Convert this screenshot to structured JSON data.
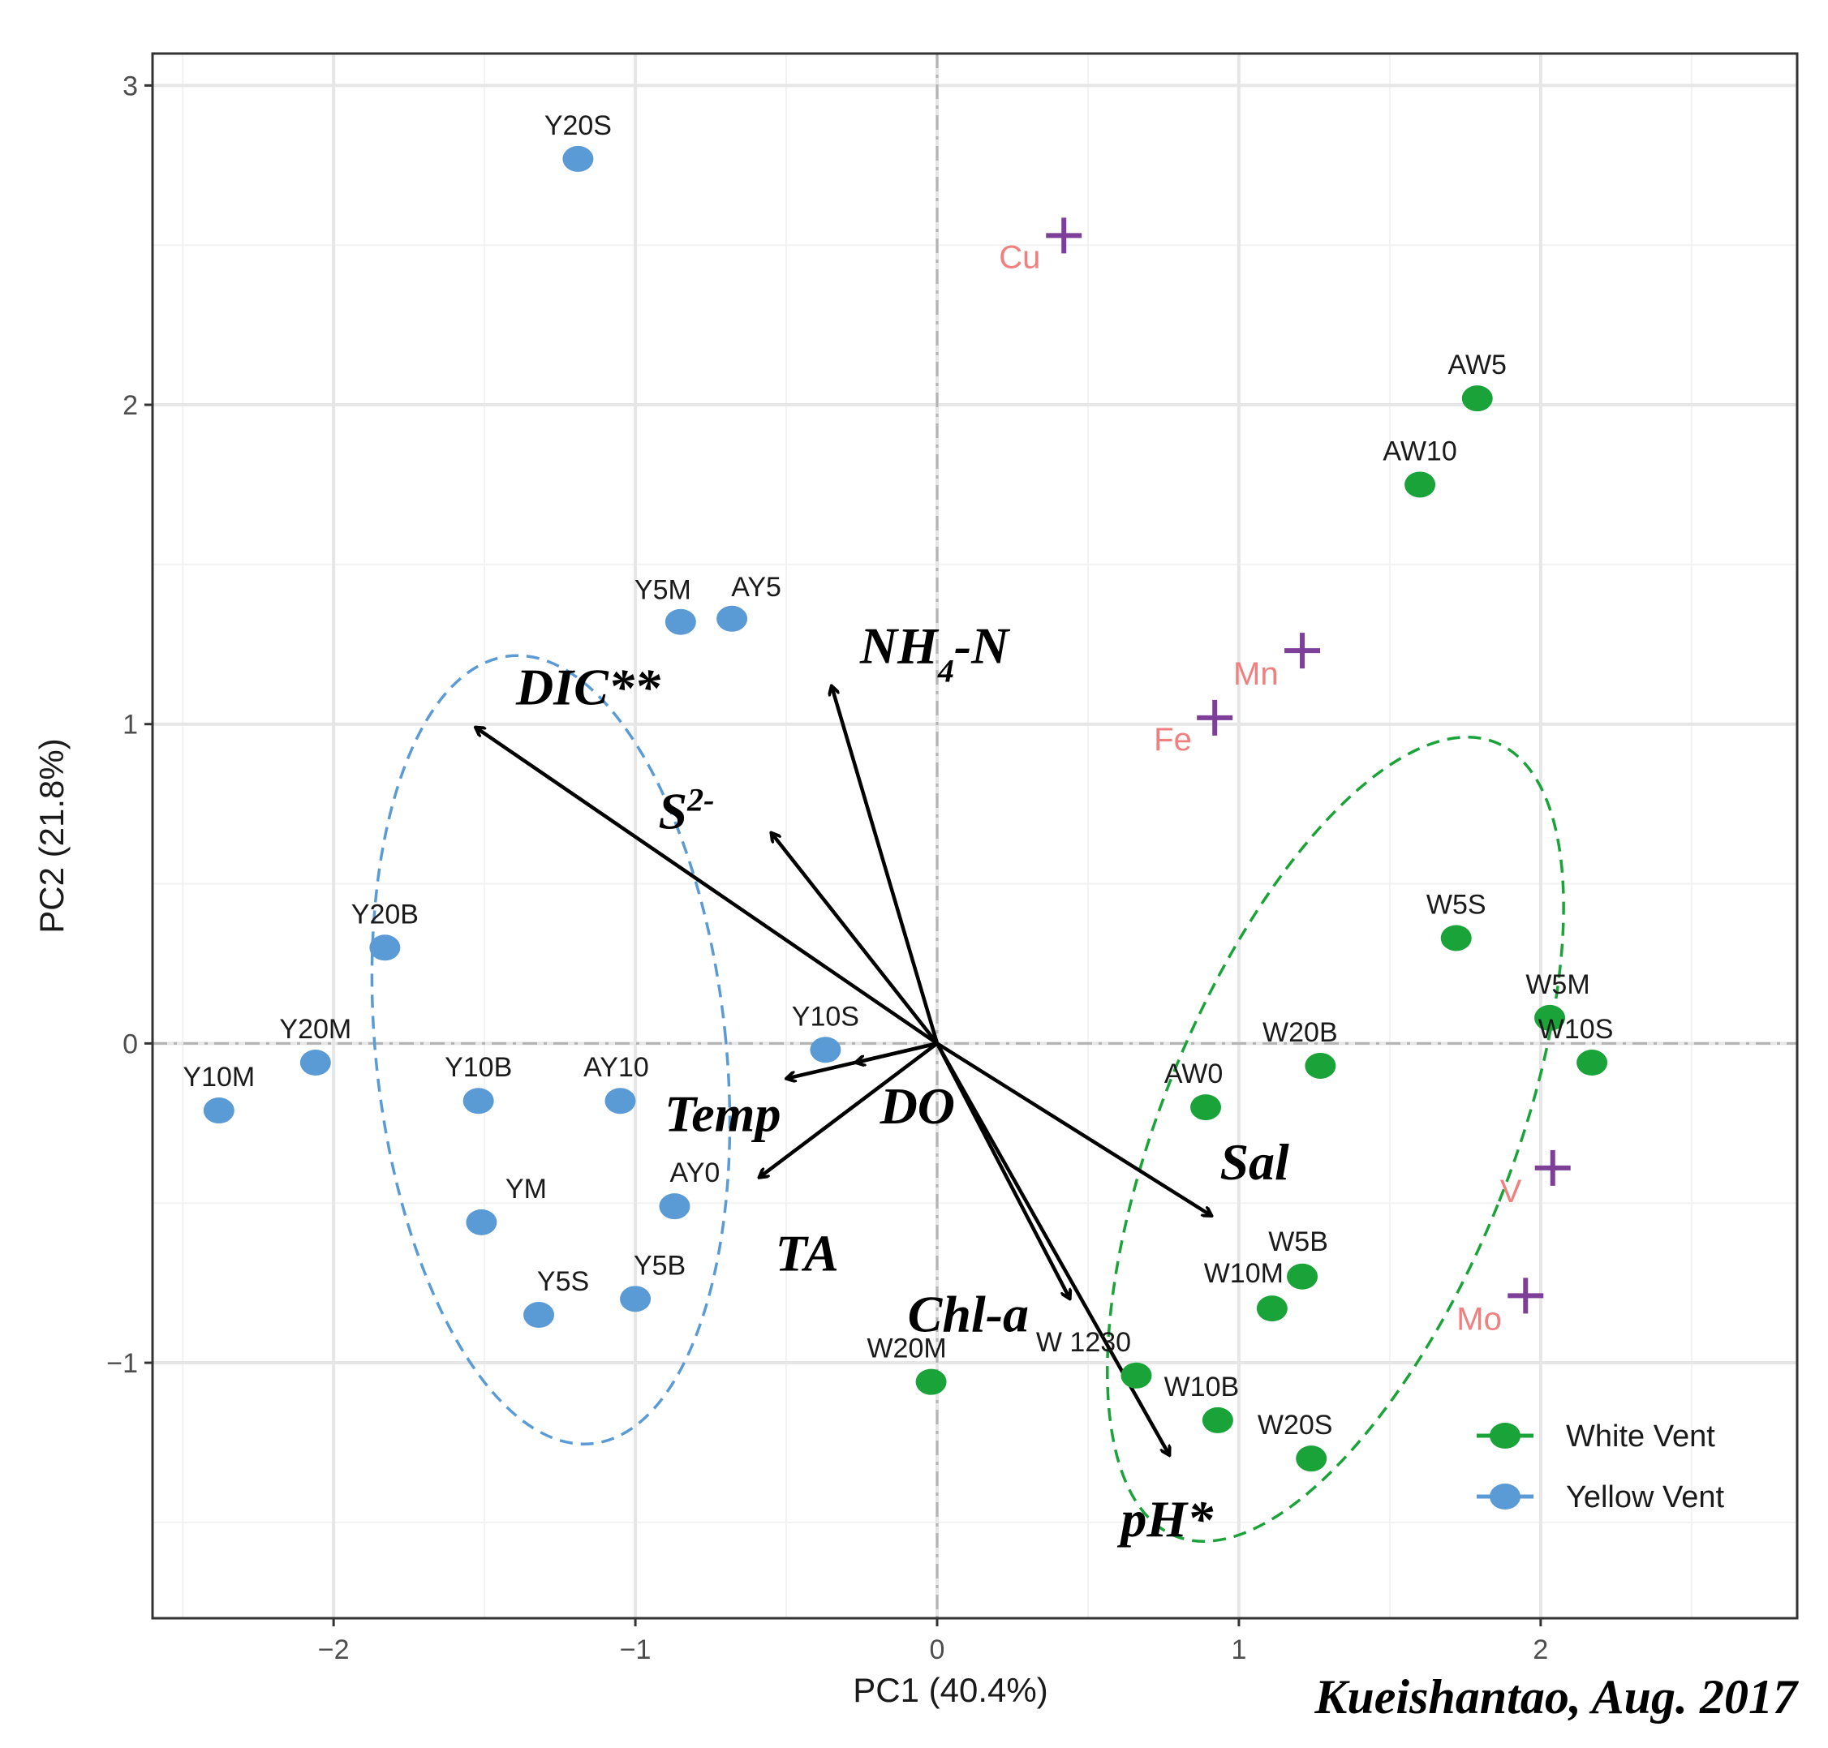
{
  "chart_data": {
    "type": "scatter",
    "subtype": "pca-biplot",
    "xlabel": "PC1 (40.4%)",
    "ylabel": "PC2 (21.8%)",
    "xlim": [
      -2.6,
      2.85
    ],
    "ylim": [
      -1.8,
      3.1
    ],
    "xticks": [
      -2,
      -1,
      0,
      1,
      2
    ],
    "xtick_labels": [
      "−2",
      "−1",
      "0",
      "1",
      "2"
    ],
    "yticks": [
      -1,
      0,
      1,
      2,
      3
    ],
    "ytick_labels": [
      "−1",
      "0",
      "1",
      "2",
      "3"
    ],
    "grid": true,
    "caption": "Kueishantao, Aug. 2017",
    "colors": {
      "white_vent": "#1aa338",
      "yellow_vent": "#5b9bd5",
      "metal_marker": "#7e3f98",
      "metal_label": "#f08080",
      "arrow": "#000000",
      "grid": "#e6e6e6",
      "zero_line": "#b3b3b3"
    },
    "series": [
      {
        "name": "Yellow Vent",
        "points": [
          {
            "label": "Y20S",
            "x": -1.19,
            "y": 2.77
          },
          {
            "label": "Y5M",
            "x": -0.85,
            "y": 1.32
          },
          {
            "label": "AY5",
            "x": -0.68,
            "y": 1.33
          },
          {
            "label": "Y20B",
            "x": -1.83,
            "y": 0.3
          },
          {
            "label": "Y20M",
            "x": -2.06,
            "y": -0.06
          },
          {
            "label": "Y10M",
            "x": -2.38,
            "y": -0.21
          },
          {
            "label": "Y10B",
            "x": -1.52,
            "y": -0.18
          },
          {
            "label": "AY10",
            "x": -1.05,
            "y": -0.18
          },
          {
            "label": "Y10S",
            "x": -0.37,
            "y": -0.02
          },
          {
            "label": "YM",
            "x": -1.51,
            "y": -0.56
          },
          {
            "label": "AY0",
            "x": -0.87,
            "y": -0.51
          },
          {
            "label": "Y5S",
            "x": -1.32,
            "y": -0.85
          },
          {
            "label": "Y5B",
            "x": -1.0,
            "y": -0.8
          }
        ]
      },
      {
        "name": "White Vent",
        "points": [
          {
            "label": "AW5",
            "x": 1.79,
            "y": 2.02
          },
          {
            "label": "AW10",
            "x": 1.6,
            "y": 1.75
          },
          {
            "label": "W5S",
            "x": 1.72,
            "y": 0.33
          },
          {
            "label": "W5M",
            "x": 2.03,
            "y": 0.08
          },
          {
            "label": "W10S",
            "x": 2.17,
            "y": -0.06
          },
          {
            "label": "W20B",
            "x": 1.27,
            "y": -0.07
          },
          {
            "label": "AW0",
            "x": 0.89,
            "y": -0.2
          },
          {
            "label": "W5B",
            "x": 1.21,
            "y": -0.73
          },
          {
            "label": "W10M",
            "x": 1.11,
            "y": -0.83
          },
          {
            "label": "W20M",
            "x": -0.02,
            "y": -1.06
          },
          {
            "label": "W 1230",
            "x": 0.66,
            "y": -1.04
          },
          {
            "label": "W10B",
            "x": 0.93,
            "y": -1.18
          },
          {
            "label": "W20S",
            "x": 1.24,
            "y": -1.3
          }
        ]
      }
    ],
    "metals": [
      {
        "label": "Cu",
        "x": 0.42,
        "y": 2.53
      },
      {
        "label": "Mn",
        "x": 1.21,
        "y": 1.23
      },
      {
        "label": "Fe",
        "x": 0.92,
        "y": 1.02
      },
      {
        "label": "V",
        "x": 2.04,
        "y": -0.39
      },
      {
        "label": "Mo",
        "x": 1.95,
        "y": -0.79
      }
    ],
    "vectors": [
      {
        "label": "DIC**",
        "x": -1.53,
        "y": 0.99
      },
      {
        "label": "NH4-N",
        "sub": "4",
        "x": -0.35,
        "y": 1.12
      },
      {
        "label": "S2-",
        "sup": "2-",
        "x": -0.55,
        "y": 0.66
      },
      {
        "label": "Temp",
        "x": -0.5,
        "y": -0.11
      },
      {
        "label": "DO",
        "x": -0.27,
        "y": -0.06
      },
      {
        "label": "TA",
        "x": -0.59,
        "y": -0.42
      },
      {
        "label": "Sal",
        "x": 0.91,
        "y": -0.54
      },
      {
        "label": "Chl-a",
        "x": 0.44,
        "y": -0.8
      },
      {
        "label": "pH*",
        "x": 0.77,
        "y": -1.29
      }
    ],
    "ellipses": [
      {
        "group": "Yellow Vent",
        "cx": -1.28,
        "cy": -0.02,
        "rx": 0.58,
        "ry": 1.24,
        "rotation_deg": -6
      },
      {
        "group": "White Vent",
        "cx": 1.32,
        "cy": -0.3,
        "rx": 0.58,
        "ry": 1.34,
        "rotation_deg": 22
      }
    ],
    "legend": {
      "position": "bottom-right",
      "entries": [
        {
          "label": "White Vent",
          "color": "#1aa338"
        },
        {
          "label": "Yellow Vent",
          "color": "#5b9bd5"
        }
      ]
    }
  }
}
